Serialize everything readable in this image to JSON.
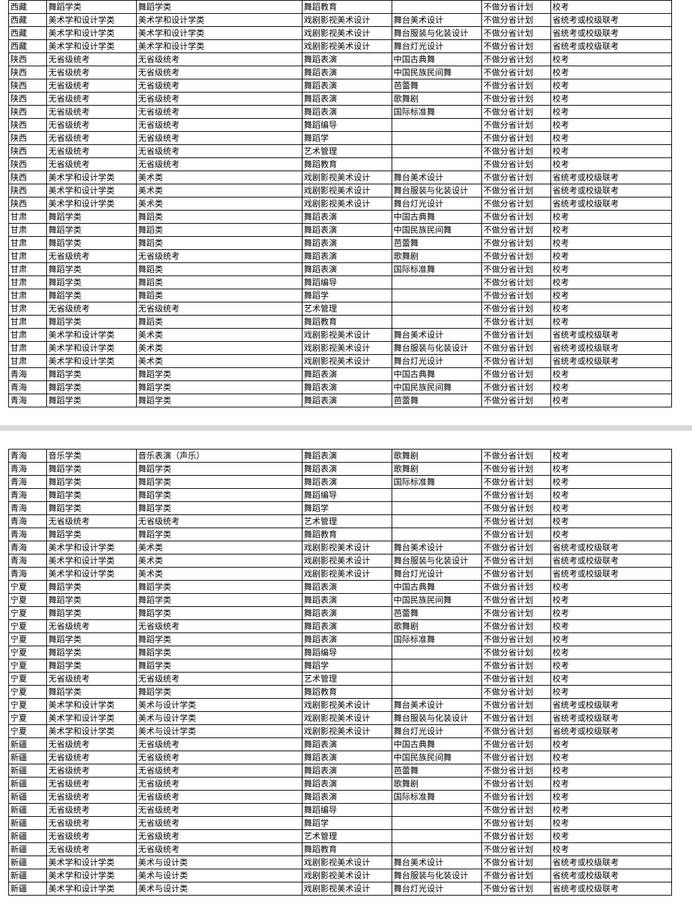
{
  "tables": {
    "top": {
      "columns": [
        "c0",
        "c1",
        "c2",
        "c3",
        "c4",
        "c5",
        "c6"
      ],
      "rows": [
        [
          "西藏",
          "舞蹈学类",
          "舞蹈学类",
          "舞蹈教育",
          "",
          "不做分省计划",
          "校考"
        ],
        [
          "西藏",
          "美术学和设计学类",
          "美术学和设计学类",
          "戏剧影视美术设计",
          "舞台美术设计",
          "不做分省计划",
          "省统考或校级联考"
        ],
        [
          "西藏",
          "美术学和设计学类",
          "美术学和设计学类",
          "戏剧影视美术设计",
          "舞台服装与化装设计",
          "不做分省计划",
          "省统考或校级联考"
        ],
        [
          "西藏",
          "美术学和设计学类",
          "美术学和设计学类",
          "戏剧影视美术设计",
          "舞台灯光设计",
          "不做分省计划",
          "省统考或校级联考"
        ],
        [
          "陕西",
          "无省级统考",
          "无省级统考",
          "舞蹈表演",
          "中国古典舞",
          "不做分省计划",
          "校考"
        ],
        [
          "陕西",
          "无省级统考",
          "无省级统考",
          "舞蹈表演",
          "中国民族民间舞",
          "不做分省计划",
          "校考"
        ],
        [
          "陕西",
          "无省级统考",
          "无省级统考",
          "舞蹈表演",
          "芭蕾舞",
          "不做分省计划",
          "校考"
        ],
        [
          "陕西",
          "无省级统考",
          "无省级统考",
          "舞蹈表演",
          "歌舞剧",
          "不做分省计划",
          "校考"
        ],
        [
          "陕西",
          "无省级统考",
          "无省级统考",
          "舞蹈表演",
          "国际标准舞",
          "不做分省计划",
          "校考"
        ],
        [
          "陕西",
          "无省级统考",
          "无省级统考",
          "舞蹈编导",
          "",
          "不做分省计划",
          "校考"
        ],
        [
          "陕西",
          "无省级统考",
          "无省级统考",
          "舞蹈学",
          "",
          "不做分省计划",
          "校考"
        ],
        [
          "陕西",
          "无省级统考",
          "无省级统考",
          "艺术管理",
          "",
          "不做分省计划",
          "校考"
        ],
        [
          "陕西",
          "无省级统考",
          "无省级统考",
          "舞蹈教育",
          "",
          "不做分省计划",
          "校考"
        ],
        [
          "陕西",
          "美术学和设计学类",
          "美术类",
          "戏剧影视美术设计",
          "舞台美术设计",
          "不做分省计划",
          "省统考或校级联考"
        ],
        [
          "陕西",
          "美术学和设计学类",
          "美术类",
          "戏剧影视美术设计",
          "舞台服装与化装设计",
          "不做分省计划",
          "省统考或校级联考"
        ],
        [
          "陕西",
          "美术学和设计学类",
          "美术类",
          "戏剧影视美术设计",
          "舞台灯光设计",
          "不做分省计划",
          "省统考或校级联考"
        ],
        [
          "甘肃",
          "舞蹈学类",
          "舞蹈类",
          "舞蹈表演",
          "中国古典舞",
          "不做分省计划",
          "校考"
        ],
        [
          "甘肃",
          "舞蹈学类",
          "舞蹈类",
          "舞蹈表演",
          "中国民族民间舞",
          "不做分省计划",
          "校考"
        ],
        [
          "甘肃",
          "舞蹈学类",
          "舞蹈类",
          "舞蹈表演",
          "芭蕾舞",
          "不做分省计划",
          "校考"
        ],
        [
          "甘肃",
          "无省级统考",
          "无省级统考",
          "舞蹈表演",
          "歌舞剧",
          "不做分省计划",
          "校考"
        ],
        [
          "甘肃",
          "舞蹈学类",
          "舞蹈类",
          "舞蹈表演",
          "国际标准舞",
          "不做分省计划",
          "校考"
        ],
        [
          "甘肃",
          "舞蹈学类",
          "舞蹈类",
          "舞蹈编导",
          "",
          "不做分省计划",
          "校考"
        ],
        [
          "甘肃",
          "舞蹈学类",
          "舞蹈类",
          "舞蹈学",
          "",
          "不做分省计划",
          "校考"
        ],
        [
          "甘肃",
          "无省级统考",
          "无省级统考",
          "艺术管理",
          "",
          "不做分省计划",
          "校考"
        ],
        [
          "甘肃",
          "舞蹈学类",
          "舞蹈类",
          "舞蹈教育",
          "",
          "不做分省计划",
          "校考"
        ],
        [
          "甘肃",
          "美术学和设计学类",
          "美术类",
          "戏剧影视美术设计",
          "舞台美术设计",
          "不做分省计划",
          "省统考或校级联考"
        ],
        [
          "甘肃",
          "美术学和设计学类",
          "美术类",
          "戏剧影视美术设计",
          "舞台服装与化装设计",
          "不做分省计划",
          "省统考或校级联考"
        ],
        [
          "甘肃",
          "美术学和设计学类",
          "美术类",
          "戏剧影视美术设计",
          "舞台灯光设计",
          "不做分省计划",
          "省统考或校级联考"
        ],
        [
          "青海",
          "舞蹈学类",
          "舞蹈学类",
          "舞蹈表演",
          "中国古典舞",
          "不做分省计划",
          "校考"
        ],
        [
          "青海",
          "舞蹈学类",
          "舞蹈学类",
          "舞蹈表演",
          "中国民族民间舞",
          "不做分省计划",
          "校考"
        ],
        [
          "青海",
          "舞蹈学类",
          "舞蹈学类",
          "舞蹈表演",
          "芭蕾舞",
          "不做分省计划",
          "校考"
        ]
      ]
    },
    "bottom": {
      "columns": [
        "c0",
        "c1",
        "c2",
        "c3",
        "c4",
        "c5",
        "c6"
      ],
      "rows": [
        [
          "青海",
          "音乐学类",
          "音乐表演（声乐）",
          "舞蹈表演",
          "歌舞剧",
          "不做分省计划",
          "校考"
        ],
        [
          "青海",
          "舞蹈学类",
          "舞蹈学类",
          "舞蹈表演",
          "歌舞剧",
          "不做分省计划",
          "校考"
        ],
        [
          "青海",
          "舞蹈学类",
          "舞蹈学类",
          "舞蹈表演",
          "国际标准舞",
          "不做分省计划",
          "校考"
        ],
        [
          "青海",
          "舞蹈学类",
          "舞蹈学类",
          "舞蹈编导",
          "",
          "不做分省计划",
          "校考"
        ],
        [
          "青海",
          "舞蹈学类",
          "舞蹈学类",
          "舞蹈学",
          "",
          "不做分省计划",
          "校考"
        ],
        [
          "青海",
          "无省级统考",
          "无省级统考",
          "艺术管理",
          "",
          "不做分省计划",
          "校考"
        ],
        [
          "青海",
          "舞蹈学类",
          "舞蹈学类",
          "舞蹈教育",
          "",
          "不做分省计划",
          "校考"
        ],
        [
          "青海",
          "美术学和设计学类",
          "美术类",
          "戏剧影视美术设计",
          "舞台美术设计",
          "不做分省计划",
          "省统考或校级联考"
        ],
        [
          "青海",
          "美术学和设计学类",
          "美术类",
          "戏剧影视美术设计",
          "舞台服装与化装设计",
          "不做分省计划",
          "省统考或校级联考"
        ],
        [
          "青海",
          "美术学和设计学类",
          "美术类",
          "戏剧影视美术设计",
          "舞台灯光设计",
          "不做分省计划",
          "省统考或校级联考"
        ],
        [
          "宁夏",
          "舞蹈学类",
          "舞蹈学类",
          "舞蹈表演",
          "中国古典舞",
          "不做分省计划",
          "校考"
        ],
        [
          "宁夏",
          "舞蹈学类",
          "舞蹈学类",
          "舞蹈表演",
          "中国民族民间舞",
          "不做分省计划",
          "校考"
        ],
        [
          "宁夏",
          "舞蹈学类",
          "舞蹈学类",
          "舞蹈表演",
          "芭蕾舞",
          "不做分省计划",
          "校考"
        ],
        [
          "宁夏",
          "无省级统考",
          "无省级统考",
          "舞蹈表演",
          "歌舞剧",
          "不做分省计划",
          "校考"
        ],
        [
          "宁夏",
          "舞蹈学类",
          "舞蹈学类",
          "舞蹈表演",
          "国际标准舞",
          "不做分省计划",
          "校考"
        ],
        [
          "宁夏",
          "舞蹈学类",
          "舞蹈学类",
          "舞蹈编导",
          "",
          "不做分省计划",
          "校考"
        ],
        [
          "宁夏",
          "舞蹈学类",
          "舞蹈学类",
          "舞蹈学",
          "",
          "不做分省计划",
          "校考"
        ],
        [
          "宁夏",
          "无省级统考",
          "无省级统考",
          "艺术管理",
          "",
          "不做分省计划",
          "校考"
        ],
        [
          "宁夏",
          "舞蹈学类",
          "舞蹈学类",
          "舞蹈教育",
          "",
          "不做分省计划",
          "校考"
        ],
        [
          "宁夏",
          "美术学和设计学类",
          "美术与设计学类",
          "戏剧影视美术设计",
          "舞台美术设计",
          "不做分省计划",
          "省统考或校级联考"
        ],
        [
          "宁夏",
          "美术学和设计学类",
          "美术与设计学类",
          "戏剧影视美术设计",
          "舞台服装与化装设计",
          "不做分省计划",
          "省统考或校级联考"
        ],
        [
          "宁夏",
          "美术学和设计学类",
          "美术与设计学类",
          "戏剧影视美术设计",
          "舞台灯光设计",
          "不做分省计划",
          "省统考或校级联考"
        ],
        [
          "新疆",
          "无省级统考",
          "无省级统考",
          "舞蹈表演",
          "中国古典舞",
          "不做分省计划",
          "校考"
        ],
        [
          "新疆",
          "无省级统考",
          "无省级统考",
          "舞蹈表演",
          "中国民族民间舞",
          "不做分省计划",
          "校考"
        ],
        [
          "新疆",
          "无省级统考",
          "无省级统考",
          "舞蹈表演",
          "芭蕾舞",
          "不做分省计划",
          "校考"
        ],
        [
          "新疆",
          "无省级统考",
          "无省级统考",
          "舞蹈表演",
          "歌舞剧",
          "不做分省计划",
          "校考"
        ],
        [
          "新疆",
          "无省级统考",
          "无省级统考",
          "舞蹈表演",
          "国际标准舞",
          "不做分省计划",
          "校考"
        ],
        [
          "新疆",
          "无省级统考",
          "无省级统考",
          "舞蹈编导",
          "",
          "不做分省计划",
          "校考"
        ],
        [
          "新疆",
          "无省级统考",
          "无省级统考",
          "舞蹈学",
          "",
          "不做分省计划",
          "校考"
        ],
        [
          "新疆",
          "无省级统考",
          "无省级统考",
          "艺术管理",
          "",
          "不做分省计划",
          "校考"
        ],
        [
          "新疆",
          "无省级统考",
          "无省级统考",
          "舞蹈教育",
          "",
          "不做分省计划",
          "校考"
        ],
        [
          "新疆",
          "美术学和设计学类",
          "美术与设计类",
          "戏剧影视美术设计",
          "舞台美术设计",
          "不做分省计划",
          "省统考或校级联考"
        ],
        [
          "新疆",
          "美术学和设计学类",
          "美术与设计类",
          "戏剧影视美术设计",
          "舞台服装与化装设计",
          "不做分省计划",
          "省统考或校级联考"
        ],
        [
          "新疆",
          "美术学和设计学类",
          "美术与设计类",
          "戏剧影视美术设计",
          "舞台灯光设计",
          "不做分省计划",
          "省统考或校级联考"
        ]
      ]
    }
  }
}
